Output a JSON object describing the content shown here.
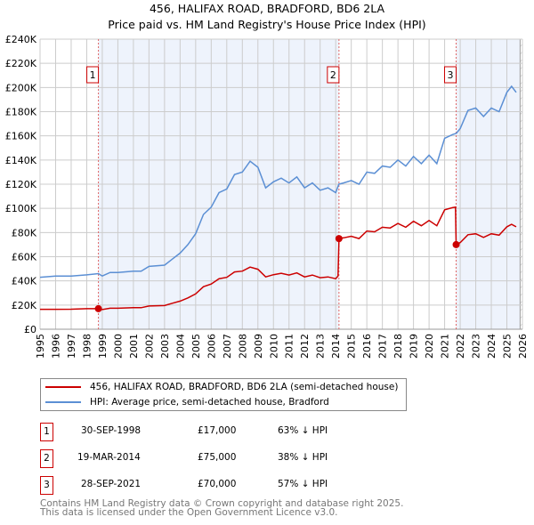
{
  "chart_data": {
    "type": "line",
    "title": "456, HALIFAX ROAD, BRADFORD, BD6 2LA",
    "subtitle": "Price paid vs. HM Land Registry's House Price Index (HPI)",
    "xlim": [
      1995,
      2026
    ],
    "ylim": [
      0,
      240000
    ],
    "x_ticks": [
      "1995",
      "1996",
      "1997",
      "1998",
      "1999",
      "2000",
      "2001",
      "2002",
      "2003",
      "2004",
      "2005",
      "2006",
      "2007",
      "2008",
      "2009",
      "2010",
      "2011",
      "2012",
      "2013",
      "2014",
      "2015",
      "2016",
      "2017",
      "2018",
      "2019",
      "2020",
      "2021",
      "2022",
      "2023",
      "2024",
      "2025",
      "2026"
    ],
    "y_ticks": [
      {
        "v": 0,
        "label": "£0"
      },
      {
        "v": 20000,
        "label": "£20K"
      },
      {
        "v": 40000,
        "label": "£40K"
      },
      {
        "v": 60000,
        "label": "£60K"
      },
      {
        "v": 80000,
        "label": "£80K"
      },
      {
        "v": 100000,
        "label": "£100K"
      },
      {
        "v": 120000,
        "label": "£120K"
      },
      {
        "v": 140000,
        "label": "£140K"
      },
      {
        "v": 160000,
        "label": "£160K"
      },
      {
        "v": 180000,
        "label": "£180K"
      },
      {
        "v": 200000,
        "label": "£200K"
      },
      {
        "v": 220000,
        "label": "£220K"
      },
      {
        "v": 240000,
        "label": "£240K"
      }
    ],
    "grid": true,
    "series": [
      {
        "name": "456, HALIFAX ROAD, BRADFORD, BD6 2LA (semi-detached house)",
        "color": "#cc0000",
        "x": [
          1995,
          1996,
          1997,
          1998,
          1998.75,
          1999,
          1999.5,
          2000,
          2001,
          2001.5,
          2002,
          2003,
          2003.5,
          2004,
          2004.5,
          2005,
          2005.5,
          2006,
          2006.5,
          2007,
          2007.5,
          2008,
          2008.5,
          2009,
          2009.5,
          2010,
          2010.5,
          2011,
          2011.5,
          2012,
          2012.5,
          2013,
          2013.5,
          2014,
          2014.15,
          2014.21,
          2014.5,
          2015,
          2015.5,
          2016,
          2016.5,
          2017,
          2017.5,
          2018,
          2018.5,
          2019,
          2019.5,
          2020,
          2020.5,
          2021,
          2021.5,
          2021.7,
          2021.74,
          2022,
          2022.5,
          2023,
          2023.5,
          2024,
          2024.5,
          2025,
          2025.3,
          2025.6
        ],
        "y": [
          16500,
          16500,
          16600,
          17000,
          17000,
          16300,
          17400,
          17400,
          17800,
          17800,
          19200,
          19600,
          21500,
          23300,
          25900,
          29200,
          35200,
          37400,
          41800,
          42900,
          47400,
          48100,
          51400,
          49600,
          43300,
          45100,
          46300,
          44800,
          46600,
          43300,
          44800,
          42600,
          43300,
          41800,
          44000,
          75000,
          75600,
          76900,
          75000,
          81300,
          80600,
          84400,
          83800,
          87500,
          84400,
          89400,
          85600,
          90000,
          85600,
          98800,
          100600,
          101000,
          70000,
          71700,
          78200,
          79000,
          76000,
          79000,
          77800,
          84700,
          86800,
          84700
        ]
      },
      {
        "name": "HPI: Average price, semi-detached house, Bradford",
        "color": "#5b8fd4",
        "x": [
          1995,
          1996,
          1997,
          1998,
          1998.75,
          1999,
          1999.5,
          2000,
          2001,
          2001.5,
          2002,
          2003,
          2003.5,
          2004,
          2004.5,
          2005,
          2005.5,
          2006,
          2006.5,
          2007,
          2007.5,
          2008,
          2008.5,
          2009,
          2009.5,
          2010,
          2010.5,
          2011,
          2011.5,
          2012,
          2012.5,
          2013,
          2013.5,
          2014,
          2014.2,
          2014.5,
          2015,
          2015.5,
          2016,
          2016.5,
          2017,
          2017.5,
          2018,
          2018.5,
          2019,
          2019.5,
          2020,
          2020.5,
          2021,
          2021.5,
          2021.75,
          2022,
          2022.5,
          2023,
          2023.5,
          2024,
          2024.5,
          2025,
          2025.3,
          2025.6
        ],
        "y": [
          43000,
          44000,
          44000,
          45000,
          46000,
          44000,
          47000,
          47000,
          48000,
          48000,
          52000,
          53000,
          58000,
          63000,
          70000,
          79000,
          95000,
          101000,
          113000,
          116000,
          128000,
          130000,
          139000,
          134000,
          117000,
          122000,
          125000,
          121000,
          126000,
          117000,
          121000,
          115000,
          117000,
          113000,
          120000,
          121000,
          123000,
          120000,
          130000,
          129000,
          135000,
          134000,
          140000,
          135000,
          143000,
          137000,
          144000,
          137000,
          158000,
          161000,
          162000,
          166000,
          181000,
          183000,
          176000,
          183000,
          180000,
          196000,
          201000,
          196000
        ]
      }
    ],
    "sales": [
      {
        "id": "1",
        "x": 1998.75,
        "price": 17000
      },
      {
        "id": "2",
        "x": 2014.21,
        "price": 75000
      },
      {
        "id": "3",
        "x": 2021.74,
        "price": 70000
      }
    ],
    "shaded_ranges": [
      [
        1998.75,
        2014.21
      ],
      [
        2021.74,
        2025.85
      ]
    ],
    "hatched_from": 2025.85,
    "legend": "bottom"
  },
  "legend_items": [
    {
      "label": "456, HALIFAX ROAD, BRADFORD, BD6 2LA (semi-detached house)",
      "color": "#cc0000"
    },
    {
      "label": "HPI: Average price, semi-detached house, Bradford",
      "color": "#5b8fd4"
    }
  ],
  "transactions": [
    {
      "id": "1",
      "date": "30-SEP-1998",
      "price": "£17,000",
      "hpi": "63% ↓ HPI"
    },
    {
      "id": "2",
      "date": "19-MAR-2014",
      "price": "£75,000",
      "hpi": "38% ↓ HPI"
    },
    {
      "id": "3",
      "date": "28-SEP-2021",
      "price": "£70,000",
      "hpi": "57% ↓ HPI"
    }
  ],
  "footer": {
    "line1": "Contains HM Land Registry data © Crown copyright and database right 2025.",
    "line2": "This data is licensed under the Open Government Licence v3.0."
  }
}
